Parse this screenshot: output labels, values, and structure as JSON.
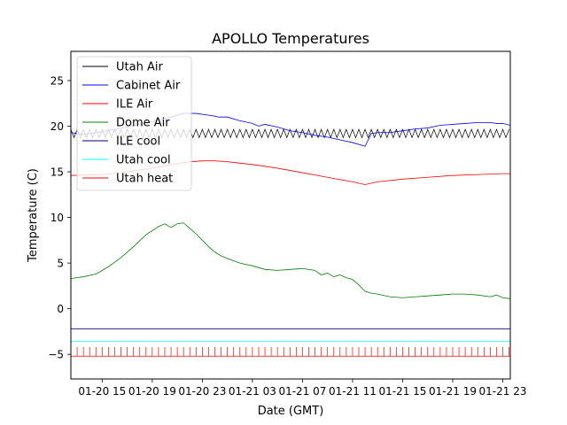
{
  "chart_data": {
    "type": "line",
    "title": "APOLLO Temperatures",
    "xlabel": "Date (GMT)",
    "ylabel": "Temperature (C)",
    "xlim": [
      12.5,
      47.6
    ],
    "ylim": [
      -7.7,
      28.2
    ],
    "x_unit": "hours since 01-20 00:00 GMT",
    "grid": false,
    "legend_position": "upper-left",
    "x_ticks": [
      {
        "value": 15,
        "label": "01-20 15"
      },
      {
        "value": 19,
        "label": "01-20 19"
      },
      {
        "value": 23,
        "label": "01-20 23"
      },
      {
        "value": 27,
        "label": "01-21 03"
      },
      {
        "value": 31,
        "label": "01-21 07"
      },
      {
        "value": 35,
        "label": "01-21 11"
      },
      {
        "value": 39,
        "label": "01-21 15"
      },
      {
        "value": 43,
        "label": "01-21 19"
      },
      {
        "value": 47,
        "label": "01-21 23"
      }
    ],
    "y_ticks": [
      {
        "value": -5,
        "label": "−5"
      },
      {
        "value": 0,
        "label": "0"
      },
      {
        "value": 5,
        "label": "5"
      },
      {
        "value": 10,
        "label": "10"
      },
      {
        "value": 15,
        "label": "15"
      },
      {
        "value": 20,
        "label": "20"
      },
      {
        "value": 25,
        "label": "25"
      }
    ],
    "series": [
      {
        "name": "Utah Air",
        "color": "#000000",
        "style": "oscillating",
        "center": 19.2,
        "amplitude": 0.45,
        "period_hours": 0.5,
        "x_range": [
          12.5,
          47.6
        ]
      },
      {
        "name": "Cabinet Air",
        "color": "#0000ff",
        "style": "line",
        "x": [
          12.5,
          13.5,
          15,
          17,
          19,
          20.5,
          21.5,
          22.5,
          23.5,
          24,
          24.3,
          25,
          26,
          27,
          27.5,
          28,
          29,
          30,
          31,
          32,
          33,
          34,
          35,
          36,
          36.5,
          37,
          38,
          39,
          40,
          41,
          42,
          43,
          44,
          45,
          46,
          46.5,
          47,
          47.6
        ],
        "y": [
          19.3,
          19.1,
          19.4,
          19.9,
          20.5,
          21.0,
          21.4,
          21.4,
          21.2,
          21.1,
          21.0,
          21.0,
          20.6,
          20.3,
          20.0,
          20.2,
          19.9,
          19.5,
          19.3,
          19.0,
          18.8,
          18.5,
          18.2,
          17.8,
          19.2,
          19.3,
          19.3,
          19.5,
          19.7,
          19.8,
          20.1,
          20.2,
          20.3,
          20.4,
          20.4,
          20.3,
          20.3,
          20.1
        ]
      },
      {
        "name": "ILE Air",
        "color": "#ff0000",
        "style": "line",
        "x": [
          12.5,
          15,
          17,
          19,
          21,
          22,
          23,
          24,
          25,
          27,
          29,
          31,
          33,
          35,
          36,
          37,
          39,
          41,
          43,
          45,
          47,
          47.6
        ],
        "y": [
          14.6,
          14.7,
          15.0,
          15.4,
          15.9,
          16.1,
          16.2,
          16.2,
          16.1,
          15.8,
          15.4,
          14.9,
          14.4,
          13.9,
          13.6,
          13.9,
          14.2,
          14.4,
          14.6,
          14.7,
          14.8,
          14.8
        ]
      },
      {
        "name": "Dome Air",
        "color": "#008000",
        "style": "line",
        "x": [
          12.5,
          13.5,
          14.5,
          15.5,
          16.5,
          17.5,
          18.5,
          19.5,
          20,
          20.5,
          21,
          21.5,
          22,
          22.5,
          23,
          23.5,
          24,
          24.5,
          25,
          26,
          27,
          28,
          29,
          30,
          31,
          32,
          32.5,
          33,
          33.5,
          34,
          34.5,
          35,
          35.5,
          36,
          36.5,
          37,
          38,
          39,
          40,
          41,
          42,
          43,
          44,
          45,
          46,
          46.5,
          47,
          47.6
        ],
        "y": [
          3.3,
          3.5,
          3.8,
          4.6,
          5.6,
          6.8,
          8.1,
          9.0,
          9.3,
          8.9,
          9.3,
          9.4,
          8.8,
          8.2,
          7.5,
          6.8,
          6.2,
          5.8,
          5.5,
          5.0,
          4.7,
          4.3,
          4.2,
          4.3,
          4.4,
          4.2,
          3.7,
          3.9,
          3.5,
          3.7,
          3.4,
          3.2,
          2.6,
          1.9,
          1.7,
          1.6,
          1.3,
          1.2,
          1.3,
          1.4,
          1.5,
          1.6,
          1.6,
          1.5,
          1.3,
          1.5,
          1.2,
          1.1
        ]
      },
      {
        "name": "ILE cool",
        "color": "#000080",
        "style": "line",
        "x": [
          12.5,
          47.6
        ],
        "y": [
          -2.2,
          -2.2
        ]
      },
      {
        "name": "Utah cool",
        "color": "#00ffff",
        "style": "line",
        "x": [
          12.5,
          47.6
        ],
        "y": [
          -3.6,
          -3.6
        ]
      },
      {
        "name": "Utah heat",
        "color": "#ff0000",
        "style": "spikes",
        "base": -5.2,
        "top": -4.2,
        "period_hours": 0.5,
        "x_range": [
          12.5,
          47.6
        ]
      }
    ]
  }
}
